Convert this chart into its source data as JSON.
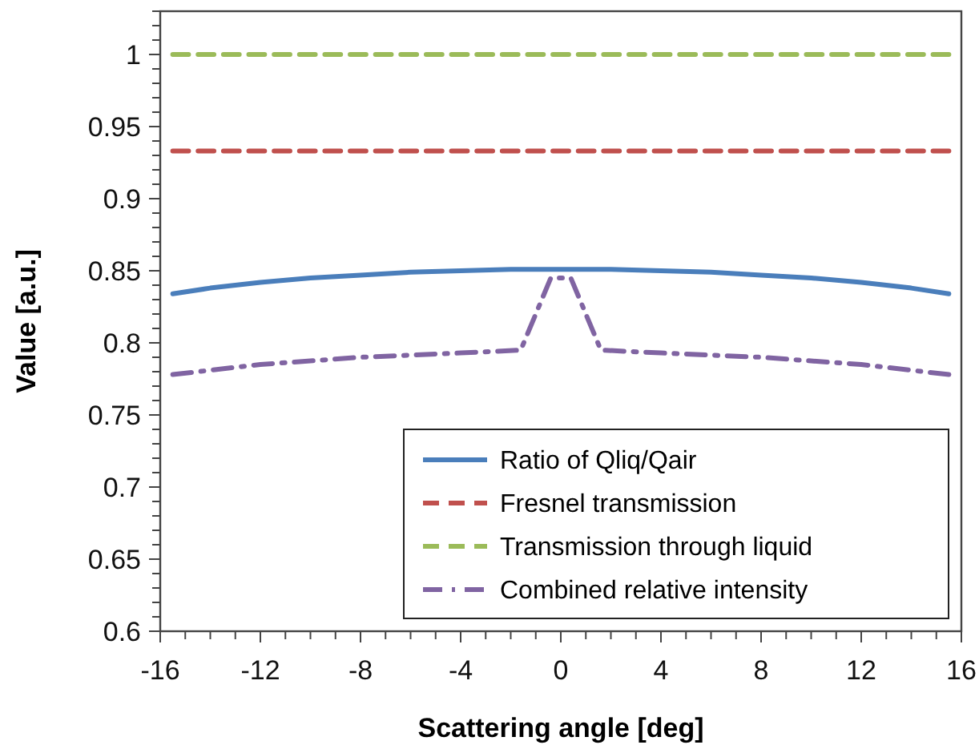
{
  "chart_data": {
    "type": "line",
    "xlabel": "Scattering angle [deg]",
    "ylabel": "Value [a.u.]",
    "xlim": [
      -16,
      16
    ],
    "ylim": [
      0.6,
      1.03
    ],
    "xticks": [
      -16,
      {
        "value": -15,
        "label": null
      },
      {
        "value": -14,
        "label": null
      },
      {
        "value": -13,
        "label": null
      },
      -12,
      {
        "value": -11,
        "label": null
      },
      {
        "value": -10,
        "label": null
      },
      {
        "value": -9,
        "label": null
      },
      -8,
      {
        "value": -7,
        "label": null
      },
      {
        "value": -6,
        "label": null
      },
      {
        "value": -5,
        "label": null
      },
      -4,
      {
        "value": -3,
        "label": null
      },
      {
        "value": -2,
        "label": null
      },
      {
        "value": -1,
        "label": null
      },
      0,
      {
        "value": 1,
        "label": null
      },
      {
        "value": 2,
        "label": null
      },
      {
        "value": 3,
        "label": null
      },
      4,
      {
        "value": 5,
        "label": null
      },
      {
        "value": 6,
        "label": null
      },
      {
        "value": 7,
        "label": null
      },
      8,
      {
        "value": 9,
        "label": null
      },
      {
        "value": 10,
        "label": null
      },
      {
        "value": 11,
        "label": null
      },
      12,
      {
        "value": 13,
        "label": null
      },
      {
        "value": 14,
        "label": null
      },
      {
        "value": 15,
        "label": null
      },
      16
    ],
    "yticks": [
      0.6,
      {
        "value": 0.61,
        "label": null
      },
      {
        "value": 0.62,
        "label": null
      },
      {
        "value": 0.63,
        "label": null
      },
      {
        "value": 0.64,
        "label": null
      },
      0.65,
      {
        "value": 0.66,
        "label": null
      },
      {
        "value": 0.67,
        "label": null
      },
      {
        "value": 0.68,
        "label": null
      },
      {
        "value": 0.69,
        "label": null
      },
      0.7,
      {
        "value": 0.71,
        "label": null
      },
      {
        "value": 0.72,
        "label": null
      },
      {
        "value": 0.73,
        "label": null
      },
      {
        "value": 0.74,
        "label": null
      },
      0.75,
      {
        "value": 0.76,
        "label": null
      },
      {
        "value": 0.77,
        "label": null
      },
      {
        "value": 0.78,
        "label": null
      },
      {
        "value": 0.79,
        "label": null
      },
      0.8,
      {
        "value": 0.81,
        "label": null
      },
      {
        "value": 0.82,
        "label": null
      },
      {
        "value": 0.83,
        "label": null
      },
      {
        "value": 0.84,
        "label": null
      },
      0.85,
      {
        "value": 0.86,
        "label": null
      },
      {
        "value": 0.87,
        "label": null
      },
      {
        "value": 0.88,
        "label": null
      },
      {
        "value": 0.89,
        "label": null
      },
      0.9,
      {
        "value": 0.91,
        "label": null
      },
      {
        "value": 0.92,
        "label": null
      },
      {
        "value": 0.93,
        "label": null
      },
      {
        "value": 0.94,
        "label": null
      },
      0.95,
      {
        "value": 0.96,
        "label": null
      },
      {
        "value": 0.97,
        "label": null
      },
      {
        "value": 0.98,
        "label": null
      },
      {
        "value": 0.99,
        "label": null
      },
      1,
      {
        "value": 1.01,
        "label": null
      },
      {
        "value": 1.02,
        "label": null
      },
      {
        "value": 1.03,
        "label": null
      }
    ],
    "grid": false,
    "legend": "bottom right",
    "marker": "none",
    "series": [
      {
        "name": "Ratio of Qliq/Qair",
        "color": "#4a7ebb",
        "line_style": "solid",
        "x": [
          -15.5,
          -14,
          -12,
          -10,
          -8,
          -6,
          -4,
          -2,
          0,
          2,
          4,
          6,
          8,
          10,
          12,
          14,
          15.5
        ],
        "values": [
          0.834,
          0.838,
          0.842,
          0.845,
          0.847,
          0.849,
          0.85,
          0.851,
          0.851,
          0.851,
          0.85,
          0.849,
          0.847,
          0.845,
          0.842,
          0.838,
          0.834
        ]
      },
      {
        "name": "Fresnel transmission",
        "color": "#c0504d",
        "line_style": "dashed",
        "x": [
          -15.5,
          15.5
        ],
        "values": [
          0.933,
          0.933
        ]
      },
      {
        "name": "Transmission through liquid",
        "color": "#9bbb59",
        "line_style": "dashed",
        "x": [
          -15.5,
          15.5
        ],
        "values": [
          1,
          1
        ]
      },
      {
        "name": "Combined relative intensity",
        "color": "#8064a2",
        "line_style": "dashdot",
        "x": [
          -15.5,
          -12,
          -8,
          -4,
          -1.6,
          -0.4,
          0.4,
          1.6,
          4,
          8,
          12,
          15.5
        ],
        "values": [
          0.778,
          0.785,
          0.79,
          0.793,
          0.795,
          0.845,
          0.845,
          0.795,
          0.793,
          0.79,
          0.785,
          0.778
        ]
      }
    ]
  }
}
